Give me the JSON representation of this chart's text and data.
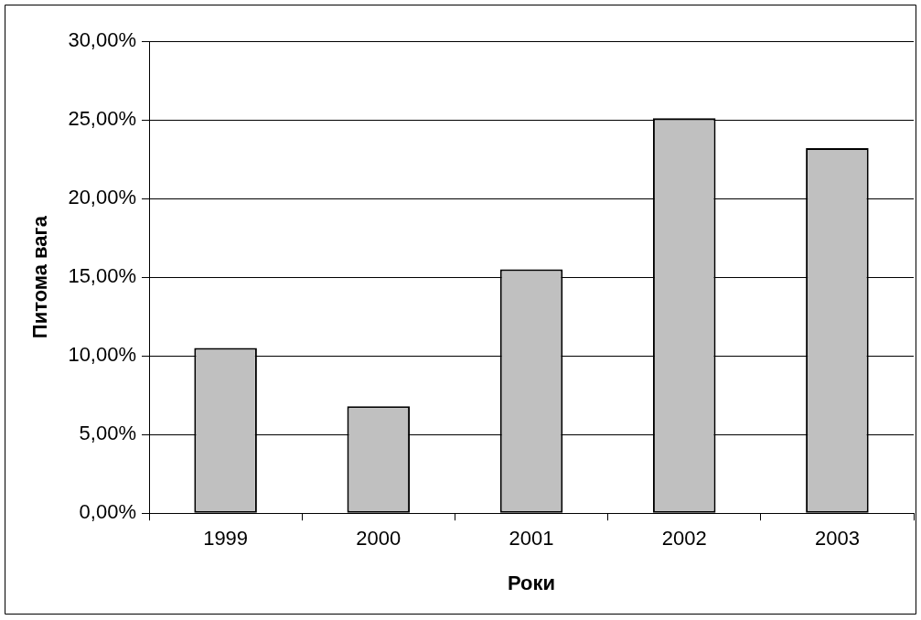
{
  "chart_data": {
    "type": "bar",
    "xlabel": "Роки",
    "ylabel": "Питома вага",
    "categories": [
      "1999",
      "2000",
      "2001",
      "2002",
      "2003"
    ],
    "values": [
      10.5,
      6.8,
      15.5,
      25.1,
      23.2
    ],
    "color": "#c0c0c0",
    "ylim": [
      0,
      30
    ],
    "yticks": [
      {
        "value": 0,
        "label": "0,00%"
      },
      {
        "value": 5,
        "label": "5,00%"
      },
      {
        "value": 10,
        "label": "10,00%"
      },
      {
        "value": 15,
        "label": "15,00%"
      },
      {
        "value": 20,
        "label": "20,00%"
      },
      {
        "value": 25,
        "label": "25,00%"
      },
      {
        "value": 30,
        "label": "30,00%"
      }
    ],
    "grid": "y",
    "legend": false
  }
}
